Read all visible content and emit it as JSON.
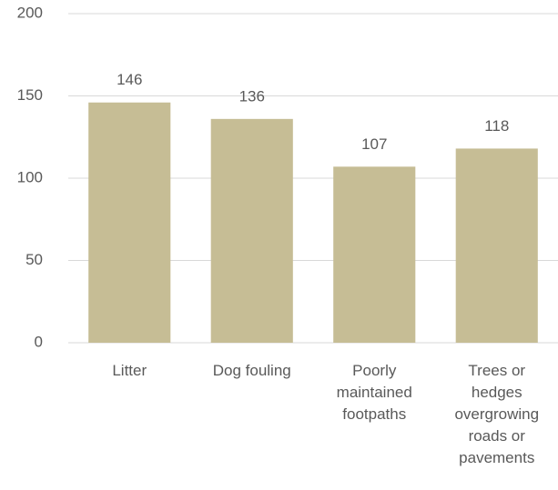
{
  "chart_data": {
    "type": "bar",
    "categories": [
      "Litter",
      "Dog fouling",
      "Poorly maintained footpaths",
      "Trees or hedges overgrowing roads or pavements"
    ],
    "values": [
      146,
      136,
      107,
      118
    ],
    "color": "#c6bd95",
    "ylim": [
      0,
      200
    ],
    "yticks": [
      0,
      50,
      100,
      150,
      200
    ],
    "grid": true
  }
}
